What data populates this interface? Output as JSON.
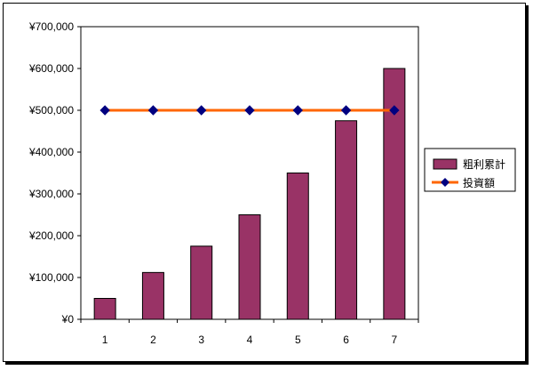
{
  "chart_data": {
    "type": "bar",
    "categories": [
      "1",
      "2",
      "3",
      "4",
      "5",
      "6",
      "7"
    ],
    "series": [
      {
        "name": "粗利累計",
        "type": "bar",
        "color": "#993366",
        "values": [
          50000,
          112000,
          175000,
          250000,
          350000,
          475000,
          600000
        ]
      },
      {
        "name": "投資額",
        "type": "line",
        "color": "#ff6600",
        "marker_color": "#000080",
        "values": [
          500000,
          500000,
          500000,
          500000,
          500000,
          500000,
          500000
        ]
      }
    ],
    "ylim": [
      0,
      700000
    ],
    "y_ticks": [
      "¥0",
      "¥100,000",
      "¥200,000",
      "¥300,000",
      "¥400,000",
      "¥500,000",
      "¥600,000",
      "¥700,000"
    ],
    "y_tick_values": [
      0,
      100000,
      200000,
      300000,
      400000,
      500000,
      600000,
      700000
    ],
    "grid": false,
    "plot_background": "#ffffff",
    "legend_position": "right"
  }
}
